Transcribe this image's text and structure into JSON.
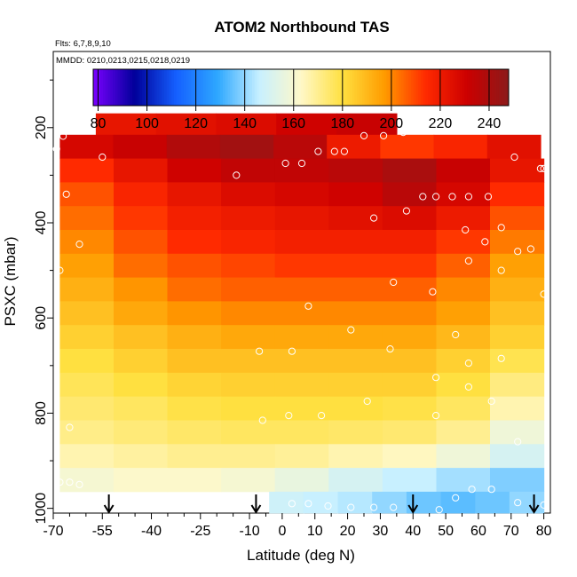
{
  "chart_data": {
    "type": "heatmap",
    "title": "ATOM2 Northbound TAS",
    "flights_note": "Flts: 6,7,8,9,10",
    "dates_note": "MMDD: 0210,0213,0215,0218,0219",
    "xlabel": "Latitude (deg N)",
    "ylabel": "PSXC (mbar)",
    "xlim": [
      -70,
      82
    ],
    "ylim": [
      1010,
      40
    ],
    "x_ticks": [
      -70,
      -55,
      -40,
      -25,
      -10,
      0,
      10,
      20,
      30,
      40,
      50,
      60,
      70,
      80
    ],
    "y_ticks": [
      200,
      400,
      600,
      800,
      1000
    ],
    "colorbar": {
      "min": 78,
      "max": 248,
      "ticks": [
        80,
        100,
        120,
        140,
        160,
        180,
        200,
        220,
        240
      ],
      "colors": [
        "#7a00ff",
        "#00009a",
        "#1560ff",
        "#2ea8ff",
        "#c8f0ff",
        "#fff8c8",
        "#ffe040",
        "#ff9c00",
        "#ff2a00",
        "#cc0000",
        "#8b1a1a"
      ]
    },
    "pressure_bands": [
      {
        "p_top": 170,
        "p_bottom": 215,
        "lat_start": -57,
        "lat_end": 35,
        "values": [
          222,
          224,
          226,
          230,
          232
        ]
      },
      {
        "p_top": 215,
        "p_bottom": 265,
        "lat_start": -68,
        "lat_end": 79,
        "values": [
          228,
          232,
          238,
          242,
          236,
          220,
          212,
          216,
          224
        ]
      },
      {
        "p_top": 265,
        "p_bottom": 315,
        "lat_start": -68,
        "lat_end": 80,
        "values": [
          214,
          222,
          230,
          234,
          234,
          236,
          240,
          232,
          222
        ]
      },
      {
        "p_top": 315,
        "p_bottom": 365,
        "lat_start": -68,
        "lat_end": 80,
        "values": [
          208,
          216,
          222,
          226,
          228,
          230,
          236,
          228,
          214
        ]
      },
      {
        "p_top": 365,
        "p_bottom": 415,
        "lat_start": -68,
        "lat_end": 80,
        "values": [
          204,
          212,
          218,
          220,
          222,
          224,
          226,
          220,
          208
        ]
      },
      {
        "p_top": 415,
        "p_bottom": 465,
        "lat_start": -68,
        "lat_end": 80,
        "values": [
          200,
          208,
          214,
          216,
          218,
          218,
          218,
          212,
          202
        ]
      },
      {
        "p_top": 465,
        "p_bottom": 515,
        "lat_start": -68,
        "lat_end": 80,
        "values": [
          196,
          204,
          208,
          210,
          212,
          212,
          212,
          206,
          196
        ]
      },
      {
        "p_top": 515,
        "p_bottom": 565,
        "lat_start": -68,
        "lat_end": 80,
        "values": [
          192,
          198,
          204,
          206,
          206,
          206,
          206,
          200,
          192
        ]
      },
      {
        "p_top": 565,
        "p_bottom": 615,
        "lat_start": -68,
        "lat_end": 80,
        "values": [
          188,
          194,
          198,
          200,
          200,
          200,
          200,
          196,
          188
        ]
      },
      {
        "p_top": 615,
        "p_bottom": 665,
        "lat_start": -68,
        "lat_end": 80,
        "values": [
          184,
          188,
          192,
          194,
          194,
          194,
          194,
          190,
          184
        ]
      },
      {
        "p_top": 665,
        "p_bottom": 715,
        "lat_start": -68,
        "lat_end": 80,
        "values": [
          180,
          184,
          188,
          188,
          188,
          188,
          188,
          184,
          178
        ]
      },
      {
        "p_top": 715,
        "p_bottom": 765,
        "lat_start": -68,
        "lat_end": 80,
        "values": [
          177,
          180,
          183,
          184,
          184,
          184,
          184,
          180,
          172
        ]
      },
      {
        "p_top": 765,
        "p_bottom": 815,
        "lat_start": -68,
        "lat_end": 80,
        "values": [
          174,
          176,
          179,
          180,
          180,
          180,
          179,
          176,
          166
        ]
      },
      {
        "p_top": 815,
        "p_bottom": 865,
        "lat_start": -68,
        "lat_end": 80,
        "values": [
          171,
          173,
          175,
          176,
          176,
          175,
          174,
          170,
          158
        ]
      },
      {
        "p_top": 865,
        "p_bottom": 915,
        "lat_start": -68,
        "lat_end": 80,
        "values": [
          166,
          168,
          170,
          170,
          169,
          166,
          164,
          158,
          150
        ]
      },
      {
        "p_top": 915,
        "p_bottom": 965,
        "lat_start": -68,
        "lat_end": 80,
        "values": [
          160,
          162,
          162,
          160,
          156,
          150,
          146,
          142,
          138
        ]
      },
      {
        "p_top": 965,
        "p_bottom": 1010,
        "lat_start": -4,
        "lat_end": 80,
        "values": [
          148,
          146,
          144,
          140,
          136,
          134,
          136,
          140
        ]
      }
    ],
    "observations": [
      {
        "lat": -69,
        "p": 245
      },
      {
        "lat": -67,
        "p": 218
      },
      {
        "lat": -63,
        "p": 190
      },
      {
        "lat": -60,
        "p": 190
      },
      {
        "lat": -58,
        "p": 190
      },
      {
        "lat": -55,
        "p": 262
      },
      {
        "lat": -66,
        "p": 340
      },
      {
        "lat": -62,
        "p": 445
      },
      {
        "lat": -68,
        "p": 500
      },
      {
        "lat": -65,
        "p": 830
      },
      {
        "lat": -68,
        "p": 945
      },
      {
        "lat": -65,
        "p": 945
      },
      {
        "lat": -62,
        "p": 950
      },
      {
        "lat": -14,
        "p": 300
      },
      {
        "lat": 1,
        "p": 275
      },
      {
        "lat": 6,
        "p": 275
      },
      {
        "lat": 11,
        "p": 250
      },
      {
        "lat": 16,
        "p": 250
      },
      {
        "lat": 19,
        "p": 250
      },
      {
        "lat": 25,
        "p": 217
      },
      {
        "lat": 31,
        "p": 217
      },
      {
        "lat": 37,
        "p": 210
      },
      {
        "lat": 28,
        "p": 390
      },
      {
        "lat": 38,
        "p": 375
      },
      {
        "lat": 43,
        "p": 345
      },
      {
        "lat": 47,
        "p": 345
      },
      {
        "lat": 52,
        "p": 345
      },
      {
        "lat": 57,
        "p": 345
      },
      {
        "lat": 63,
        "p": 345
      },
      {
        "lat": 71,
        "p": 262
      },
      {
        "lat": 79,
        "p": 286
      },
      {
        "lat": 80,
        "p": 286
      },
      {
        "lat": 56,
        "p": 415
      },
      {
        "lat": 67,
        "p": 410
      },
      {
        "lat": 62,
        "p": 440
      },
      {
        "lat": 72,
        "p": 460
      },
      {
        "lat": 76,
        "p": 455
      },
      {
        "lat": 57,
        "p": 480
      },
      {
        "lat": 67,
        "p": 500
      },
      {
        "lat": 34,
        "p": 525
      },
      {
        "lat": 46,
        "p": 545
      },
      {
        "lat": 80,
        "p": 550
      },
      {
        "lat": 8,
        "p": 575
      },
      {
        "lat": 21,
        "p": 625
      },
      {
        "lat": 53,
        "p": 635
      },
      {
        "lat": -7,
        "p": 670
      },
      {
        "lat": 3,
        "p": 670
      },
      {
        "lat": 33,
        "p": 665
      },
      {
        "lat": 47,
        "p": 725
      },
      {
        "lat": 57,
        "p": 695
      },
      {
        "lat": 67,
        "p": 685
      },
      {
        "lat": 57,
        "p": 745
      },
      {
        "lat": 26,
        "p": 775
      },
      {
        "lat": 64,
        "p": 775
      },
      {
        "lat": -6,
        "p": 815
      },
      {
        "lat": 2,
        "p": 805
      },
      {
        "lat": 12,
        "p": 805
      },
      {
        "lat": 47,
        "p": 805
      },
      {
        "lat": 72,
        "p": 860
      },
      {
        "lat": 58,
        "p": 960
      },
      {
        "lat": 64,
        "p": 960
      },
      {
        "lat": 53,
        "p": 978
      },
      {
        "lat": -6,
        "p": 990
      },
      {
        "lat": 3,
        "p": 990
      },
      {
        "lat": 8,
        "p": 990
      },
      {
        "lat": 14,
        "p": 995
      },
      {
        "lat": 21,
        "p": 998
      },
      {
        "lat": 28,
        "p": 998
      },
      {
        "lat": 34,
        "p": 998
      },
      {
        "lat": 48,
        "p": 1003
      },
      {
        "lat": 72,
        "p": 988
      },
      {
        "lat": 80,
        "p": 993
      }
    ],
    "arrow_markers_lat": [
      -53,
      -8,
      40,
      77
    ]
  }
}
